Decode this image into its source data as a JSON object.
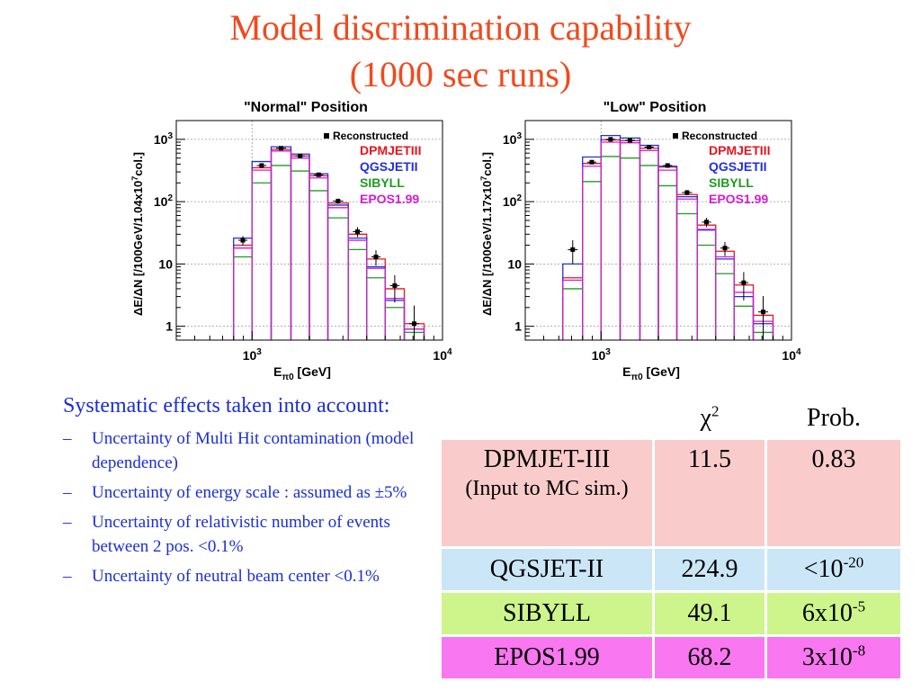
{
  "slide": {
    "title_line1": "Model discrimination capability",
    "title_line2": "(1000 sec runs)",
    "colors": {
      "title": "#f04a1e",
      "notes": "#1a2ed6"
    }
  },
  "notes": {
    "heading": "Systematic effects taken into account:",
    "bullets": [
      {
        "dash": "–",
        "text": "Uncertainty of Multi Hit contamination (model dependence)"
      },
      {
        "dash": "–",
        "text": "Uncertainty of energy scale : assumed as ±5%"
      },
      {
        "dash": "–",
        "text": "Uncertainty of relativistic number of events between 2 pos. <0.1%"
      },
      {
        "dash": "–",
        "text": "Uncertainty of neutral beam center <0.1%"
      }
    ]
  },
  "table": {
    "col_chi_base": "χ",
    "col_chi_exp": "2",
    "col_prob": "Prob.",
    "rows": [
      {
        "model": "DPMJET-III",
        "note": "(Input to MC sim.)",
        "chi2": "11.5",
        "prob_base": "0.83",
        "prob_exp": "",
        "color": "#f9cccb"
      },
      {
        "model": "QGSJET-II",
        "note": "",
        "chi2": "224.9",
        "prob_base": "<10",
        "prob_exp": "-20",
        "color": "#cbe7f7"
      },
      {
        "model": "SIBYLL",
        "note": "",
        "chi2": "49.1",
        "prob_base": "6x10",
        "prob_exp": "-5",
        "color": "#cdf58b"
      },
      {
        "model": "EPOS1.99",
        "note": "",
        "chi2": "68.2",
        "prob_base": "3x10",
        "prob_exp": "-8",
        "color": "#f977f0"
      }
    ]
  },
  "chart_data": [
    {
      "type": "bar",
      "title": "\"Normal\" Position",
      "xlabel": "E_π0 [GeV]",
      "ylabel": "ΔE/ΔN [/100GeV/1.04x10^7col.]",
      "x_scale": "log",
      "y_scale": "log",
      "xlim": [
        400,
        10000
      ],
      "ylim": [
        0.6,
        2000
      ],
      "x_ticks": [
        "10^3",
        "10^4"
      ],
      "y_ticks": [
        "1",
        "10",
        "10^2",
        "10^3"
      ],
      "legend_position": "top-right",
      "bin_edges": [
        500,
        630,
        800,
        1000,
        1260,
        1600,
        2000,
        2500,
        3200,
        4000,
        5000,
        6300,
        8000
      ],
      "series": [
        {
          "name": "Reconstructed",
          "color": "#000000",
          "values": [
            0,
            0,
            24,
            380,
            720,
            540,
            270,
            102,
            33,
            13,
            4.5,
            1.1,
            0
          ],
          "errors": [
            0,
            0,
            4,
            20,
            27,
            23,
            16,
            10,
            6,
            3.6,
            2.1,
            1.05,
            0
          ]
        },
        {
          "name": "DPMJETIII",
          "color": "#e8141e",
          "values": [
            0,
            0,
            20,
            350,
            690,
            540,
            260,
            95,
            30,
            12,
            4,
            1.1,
            0
          ]
        },
        {
          "name": "QGSJETII",
          "color": "#1f2fe0",
          "values": [
            0,
            0,
            26,
            440,
            760,
            580,
            280,
            88,
            26,
            9,
            2.6,
            0.9,
            0
          ]
        },
        {
          "name": "SIBYLL",
          "color": "#1e9c1e",
          "values": [
            0,
            0,
            13,
            200,
            380,
            310,
            150,
            55,
            17,
            6,
            2,
            0.8,
            0
          ]
        },
        {
          "name": "EPOS1.99",
          "color": "#d21ed2",
          "values": [
            0,
            0,
            18,
            320,
            650,
            500,
            240,
            80,
            24,
            8.5,
            2.8,
            0.9,
            0
          ]
        }
      ]
    },
    {
      "type": "bar",
      "title": "\"Low\" Position",
      "xlabel": "E_π0 [GeV]",
      "ylabel": "ΔE/ΔN [/100GeV/1.17x10^7col.]",
      "x_scale": "log",
      "y_scale": "log",
      "xlim": [
        400,
        10000
      ],
      "ylim": [
        0.6,
        2000
      ],
      "x_ticks": [
        "10^3",
        "10^4"
      ],
      "y_ticks": [
        "1",
        "10",
        "10^2",
        "10^3"
      ],
      "legend_position": "top-right",
      "bin_edges": [
        500,
        630,
        800,
        1000,
        1260,
        1600,
        2000,
        2500,
        3200,
        4000,
        5000,
        6300,
        8000
      ],
      "series": [
        {
          "name": "Reconstructed",
          "color": "#000000",
          "values": [
            0,
            17,
            430,
            1000,
            960,
            750,
            380,
            140,
            47,
            18,
            5,
            1.7,
            0
          ],
          "errors": [
            0,
            7,
            24,
            35,
            34,
            30,
            22,
            13,
            8,
            4.6,
            2.4,
            1.35,
            0
          ]
        },
        {
          "name": "DPMJETIII",
          "color": "#e8141e",
          "values": [
            0,
            6,
            410,
            980,
            950,
            720,
            360,
            130,
            42,
            16,
            4.6,
            1.5,
            0
          ]
        },
        {
          "name": "QGSJETII",
          "color": "#1f2fe0",
          "values": [
            0,
            10,
            520,
            1150,
            1050,
            800,
            370,
            120,
            35,
            12,
            3,
            1.1,
            0
          ]
        },
        {
          "name": "SIBYLL",
          "color": "#1e9c1e",
          "values": [
            0,
            4,
            210,
            530,
            500,
            380,
            180,
            64,
            20,
            7,
            2.1,
            0.8,
            0
          ]
        },
        {
          "name": "EPOS1.99",
          "color": "#d21ed2",
          "values": [
            0,
            5.5,
            370,
            900,
            880,
            660,
            320,
            110,
            36,
            13,
            3.5,
            1.2,
            0
          ]
        }
      ]
    }
  ]
}
